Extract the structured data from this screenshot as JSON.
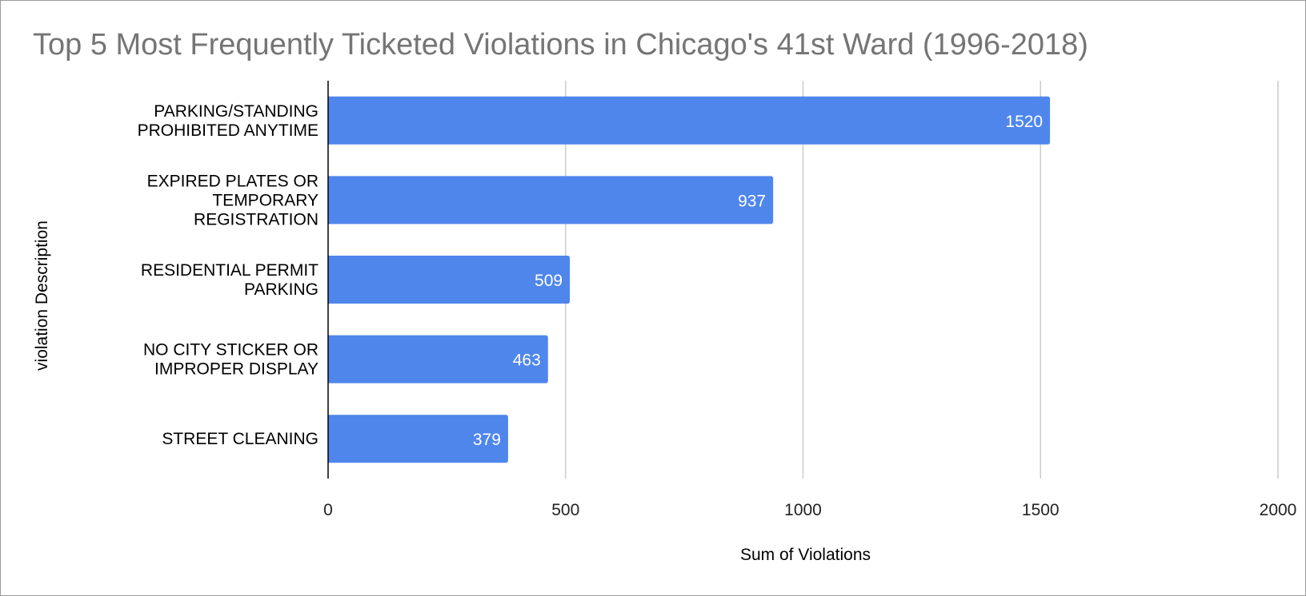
{
  "chart_data": {
    "type": "bar",
    "orientation": "horizontal",
    "title": "Top 5 Most Frequently Ticketed Violations in Chicago's 41st Ward (1996-2018)",
    "xlabel": "Sum of Violations",
    "ylabel": "violation Description",
    "categories": [
      [
        "PARKING/STANDING",
        "PROHIBITED ANYTIME"
      ],
      [
        "EXPIRED PLATES OR",
        "TEMPORARY",
        "REGISTRATION"
      ],
      [
        "RESIDENTIAL PERMIT",
        "PARKING"
      ],
      [
        "NO CITY STICKER OR",
        "IMPROPER DISPLAY"
      ],
      [
        "STREET CLEANING"
      ]
    ],
    "values": [
      1520,
      937,
      509,
      463,
      379
    ],
    "xlim": [
      0,
      2000
    ],
    "xticks": [
      0,
      500,
      1000,
      1500,
      2000
    ],
    "grid": true,
    "legend": "none",
    "bar_color": "#4f86ec",
    "grid_color": "#cccccc",
    "axis_color": "#000000"
  }
}
